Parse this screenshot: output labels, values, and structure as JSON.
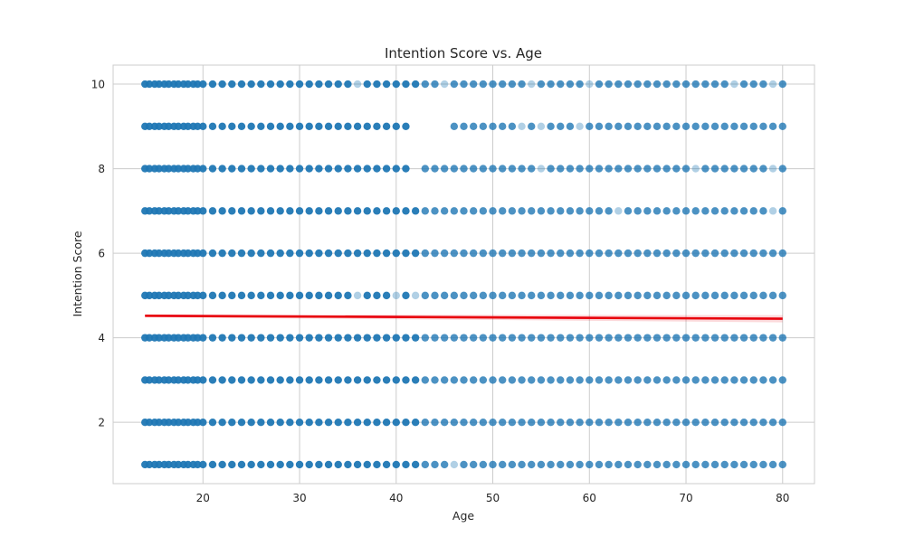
{
  "chart_data": {
    "type": "scatter",
    "title": "Intention Score vs. Age",
    "xlabel": "Age",
    "ylabel": "Intention Score",
    "xlim": [
      10.7,
      83.3
    ],
    "ylim": [
      0.55,
      10.45
    ],
    "xticks": [
      20,
      30,
      40,
      50,
      60,
      70,
      80
    ],
    "yticks": [
      2,
      4,
      6,
      8,
      10
    ],
    "grid": true,
    "x_range": [
      14,
      80
    ],
    "y_levels": [
      1,
      2,
      3,
      4,
      5,
      6,
      7,
      8,
      9,
      10
    ],
    "gaps": [
      {
        "y": 9,
        "x": [
          42,
          45
        ]
      },
      {
        "y": 8,
        "x": [
          41.5,
          42.5
        ]
      }
    ],
    "light_points": [
      [
        36,
        10
      ],
      [
        45,
        10
      ],
      [
        54,
        10
      ],
      [
        60,
        10
      ],
      [
        75,
        10
      ],
      [
        79,
        10
      ],
      [
        42,
        9
      ],
      [
        53,
        9
      ],
      [
        55,
        9
      ],
      [
        59,
        9
      ],
      [
        55,
        8
      ],
      [
        71,
        8
      ],
      [
        79,
        8
      ],
      [
        63,
        7
      ],
      [
        79,
        7
      ],
      [
        36,
        5
      ],
      [
        40,
        5
      ],
      [
        42,
        5
      ],
      [
        46,
        1
      ]
    ],
    "marker_color": "#1f77b4",
    "regression": {
      "x": [
        14,
        80
      ],
      "y": [
        4.52,
        4.45
      ],
      "color": "#e8000b"
    }
  }
}
